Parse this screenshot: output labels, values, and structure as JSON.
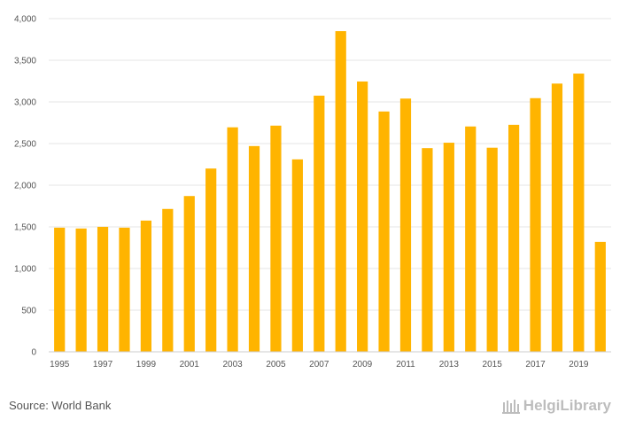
{
  "chart_data": {
    "type": "bar",
    "categories": [
      "1995",
      "1996",
      "1997",
      "1998",
      "1999",
      "2000",
      "2001",
      "2002",
      "2003",
      "2004",
      "2005",
      "2006",
      "2007",
      "2008",
      "2009",
      "2010",
      "2011",
      "2012",
      "2013",
      "2014",
      "2015",
      "2016",
      "2017",
      "2018",
      "2019",
      "2020"
    ],
    "values": [
      1490,
      1480,
      1500,
      1490,
      1575,
      1715,
      1870,
      2200,
      2695,
      2470,
      2715,
      2310,
      3075,
      3850,
      3245,
      2885,
      3040,
      2445,
      2510,
      2705,
      2450,
      2725,
      3045,
      3220,
      3340,
      1320
    ],
    "x_tick_labels": [
      "1995",
      "1997",
      "1999",
      "2001",
      "2003",
      "2005",
      "2007",
      "2009",
      "2011",
      "2013",
      "2015",
      "2017",
      "2019"
    ],
    "y_ticks": [
      "0",
      "500",
      "1,000",
      "1,500",
      "2,000",
      "2,500",
      "3,000",
      "3,500",
      "4,000"
    ],
    "ylim": [
      0,
      4000
    ],
    "grid": true,
    "bar_color": "#FFB400"
  },
  "footer": {
    "source": "Source: World Bank",
    "brand": "HelgiLibrary"
  }
}
